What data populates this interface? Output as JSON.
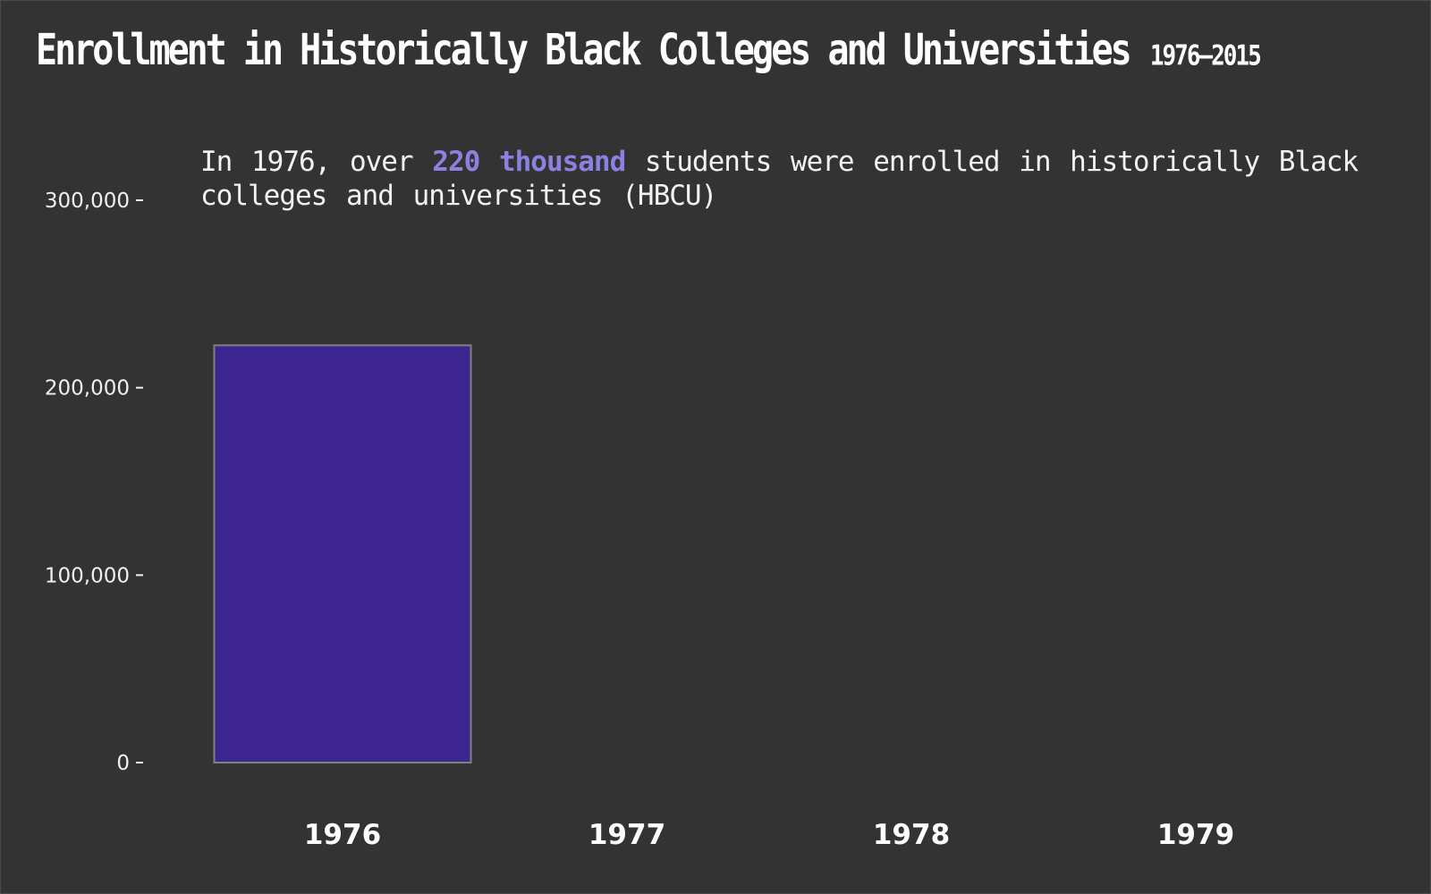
{
  "title": "Enrollment in Historically Black Colleges and Universities",
  "subtitle": "1976–2015",
  "annotation": {
    "before": "In 1976, over ",
    "highlight": "220 thousand",
    "after": " students were enrolled in historically Black colleges and universities (HBCU)"
  },
  "colors": {
    "background": "#333333",
    "bar_fill": "#3d2590",
    "bar_stroke": "#808080",
    "highlight": "#8c80e0",
    "text": "#ffffff"
  },
  "chart_data": {
    "type": "bar",
    "title": "Enrollment in Historically Black Colleges and Universities",
    "subtitle": "1976–2015",
    "categories": [
      "1976",
      "1977",
      "1978",
      "1979"
    ],
    "values": [
      222613,
      null,
      null,
      null
    ],
    "ylim": [
      0,
      300000
    ],
    "yticks": [
      0,
      100000,
      200000,
      300000
    ],
    "ytick_labels": [
      "0",
      "100,000",
      "200,000",
      "300,000"
    ],
    "xlabel": "",
    "ylabel": "",
    "grid": false,
    "legend": "none"
  }
}
